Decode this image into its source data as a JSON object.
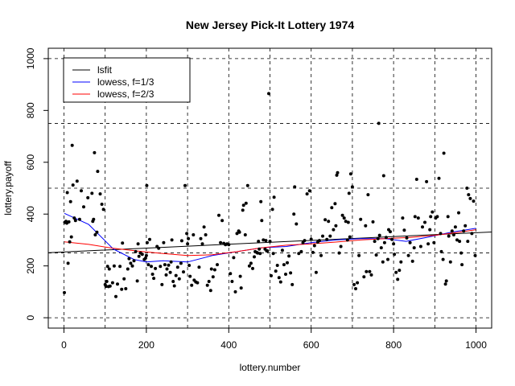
{
  "chart_data": {
    "type": "scatter",
    "title": "New Jersey Pick-It Lottery 1974",
    "xlabel": "lottery.number",
    "ylabel": "lottery.payoff",
    "xlim": [
      -38,
      1038
    ],
    "ylim": [
      -40,
      1040
    ],
    "xticks": [
      0,
      200,
      400,
      600,
      800,
      1000
    ],
    "yticks": [
      0,
      200,
      400,
      600,
      800,
      1000
    ],
    "xgrid": [
      0,
      100,
      200,
      300,
      400,
      500,
      600,
      700,
      800,
      900,
      1000
    ],
    "ygrid": [
      0,
      250,
      500,
      750,
      1000
    ],
    "grid": true,
    "legend_position": "top-left",
    "legend": [
      {
        "label": "lsfit",
        "color": "#000000"
      },
      {
        "label": "lowess, f=1/3",
        "color": "#0000ff"
      },
      {
        "label": "lowess, f=2/3",
        "color": "#ff0000"
      }
    ],
    "points": [
      [
        1,
        97
      ],
      [
        2,
        368
      ],
      [
        5,
        372
      ],
      [
        7,
        365
      ],
      [
        8,
        483
      ],
      [
        10,
        210
      ],
      [
        12,
        370
      ],
      [
        14,
        293
      ],
      [
        16,
        448
      ],
      [
        18,
        312
      ],
      [
        20,
        665
      ],
      [
        22,
        512
      ],
      [
        25,
        385
      ],
      [
        28,
        375
      ],
      [
        32,
        527
      ],
      [
        38,
        380
      ],
      [
        42,
        490
      ],
      [
        48,
        428
      ],
      [
        58,
        463
      ],
      [
        68,
        480
      ],
      [
        70,
        372
      ],
      [
        72,
        380
      ],
      [
        74,
        637
      ],
      [
        76,
        320
      ],
      [
        80,
        330
      ],
      [
        82,
        565
      ],
      [
        88,
        478
      ],
      [
        92,
        438
      ],
      [
        96,
        418
      ],
      [
        100,
        128
      ],
      [
        102,
        121
      ],
      [
        104,
        140
      ],
      [
        106,
        198
      ],
      [
        108,
        120
      ],
      [
        110,
        188
      ],
      [
        112,
        122
      ],
      [
        118,
        135
      ],
      [
        122,
        200
      ],
      [
        126,
        82
      ],
      [
        130,
        130
      ],
      [
        136,
        198
      ],
      [
        140,
        110
      ],
      [
        142,
        288
      ],
      [
        146,
        150
      ],
      [
        150,
        112
      ],
      [
        155,
        188
      ],
      [
        158,
        228
      ],
      [
        162,
        210
      ],
      [
        166,
        200
      ],
      [
        170,
        220
      ],
      [
        174,
        255
      ],
      [
        178,
        142
      ],
      [
        180,
        285
      ],
      [
        182,
        237
      ],
      [
        186,
        250
      ],
      [
        190,
        245
      ],
      [
        195,
        225
      ],
      [
        198,
        230
      ],
      [
        200,
        240
      ],
      [
        201,
        510
      ],
      [
        202,
        290
      ],
      [
        205,
        205
      ],
      [
        208,
        302
      ],
      [
        212,
        198
      ],
      [
        215,
        168
      ],
      [
        218,
        152
      ],
      [
        222,
        190
      ],
      [
        226,
        275
      ],
      [
        230,
        268
      ],
      [
        234,
        198
      ],
      [
        238,
        128
      ],
      [
        242,
        290
      ],
      [
        245,
        205
      ],
      [
        248,
        165
      ],
      [
        250,
        188
      ],
      [
        254,
        203
      ],
      [
        258,
        175
      ],
      [
        260,
        215
      ],
      [
        262,
        300
      ],
      [
        265,
        140
      ],
      [
        268,
        123
      ],
      [
        272,
        163
      ],
      [
        276,
        195
      ],
      [
        280,
        150
      ],
      [
        284,
        210
      ],
      [
        286,
        297
      ],
      [
        290,
        177
      ],
      [
        294,
        510
      ],
      [
        298,
        325
      ],
      [
        300,
        285
      ],
      [
        302,
        305
      ],
      [
        304,
        202
      ],
      [
        306,
        160
      ],
      [
        310,
        125
      ],
      [
        314,
        320
      ],
      [
        316,
        145
      ],
      [
        320,
        138
      ],
      [
        324,
        135
      ],
      [
        328,
        195
      ],
      [
        332,
        305
      ],
      [
        336,
        285
      ],
      [
        340,
        350
      ],
      [
        344,
        320
      ],
      [
        348,
        125
      ],
      [
        352,
        140
      ],
      [
        356,
        105
      ],
      [
        358,
        188
      ],
      [
        362,
        158
      ],
      [
        366,
        185
      ],
      [
        372,
        205
      ],
      [
        376,
        395
      ],
      [
        380,
        290
      ],
      [
        384,
        375
      ],
      [
        388,
        287
      ],
      [
        392,
        282
      ],
      [
        396,
        285
      ],
      [
        400,
        282
      ],
      [
        404,
        170
      ],
      [
        408,
        140
      ],
      [
        412,
        232
      ],
      [
        416,
        100
      ],
      [
        420,
        325
      ],
      [
        424,
        335
      ],
      [
        426,
        330
      ],
      [
        428,
        160
      ],
      [
        430,
        115
      ],
      [
        434,
        415
      ],
      [
        436,
        434
      ],
      [
        440,
        320
      ],
      [
        442,
        442
      ],
      [
        446,
        510
      ],
      [
        450,
        200
      ],
      [
        454,
        210
      ],
      [
        458,
        190
      ],
      [
        462,
        235
      ],
      [
        464,
        255
      ],
      [
        468,
        252
      ],
      [
        470,
        250
      ],
      [
        472,
        295
      ],
      [
        474,
        265
      ],
      [
        476,
        248
      ],
      [
        478,
        448
      ],
      [
        480,
        375
      ],
      [
        484,
        300
      ],
      [
        488,
        265
      ],
      [
        490,
        298
      ],
      [
        492,
        258
      ],
      [
        494,
        258
      ],
      [
        497,
        865
      ],
      [
        500,
        295
      ],
      [
        503,
        162
      ],
      [
        506,
        418
      ],
      [
        508,
        248
      ],
      [
        510,
        465
      ],
      [
        514,
        180
      ],
      [
        518,
        202
      ],
      [
        522,
        155
      ],
      [
        526,
        138
      ],
      [
        530,
        260
      ],
      [
        534,
        205
      ],
      [
        538,
        168
      ],
      [
        542,
        212
      ],
      [
        546,
        238
      ],
      [
        550,
        173
      ],
      [
        554,
        128
      ],
      [
        558,
        400
      ],
      [
        560,
        505
      ],
      [
        564,
        362
      ],
      [
        570,
        248
      ],
      [
        576,
        255
      ],
      [
        580,
        290
      ],
      [
        584,
        298
      ],
      [
        590,
        478
      ],
      [
        596,
        490
      ],
      [
        600,
        303
      ],
      [
        604,
        252
      ],
      [
        608,
        278
      ],
      [
        612,
        175
      ],
      [
        616,
        292
      ],
      [
        620,
        298
      ],
      [
        624,
        240
      ],
      [
        628,
        315
      ],
      [
        634,
        378
      ],
      [
        638,
        302
      ],
      [
        642,
        372
      ],
      [
        646,
        315
      ],
      [
        650,
        425
      ],
      [
        654,
        340
      ],
      [
        658,
        440
      ],
      [
        660,
        355
      ],
      [
        662,
        550
      ],
      [
        664,
        560
      ],
      [
        668,
        250
      ],
      [
        672,
        275
      ],
      [
        676,
        395
      ],
      [
        680,
        385
      ],
      [
        684,
        372
      ],
      [
        688,
        300
      ],
      [
        690,
        368
      ],
      [
        692,
        480
      ],
      [
        694,
        312
      ],
      [
        696,
        555
      ],
      [
        700,
        505
      ],
      [
        704,
        128
      ],
      [
        708,
        112
      ],
      [
        712,
        135
      ],
      [
        716,
        240
      ],
      [
        720,
        380
      ],
      [
        728,
        158
      ],
      [
        732,
        355
      ],
      [
        734,
        178
      ],
      [
        738,
        475
      ],
      [
        742,
        178
      ],
      [
        746,
        165
      ],
      [
        750,
        370
      ],
      [
        754,
        295
      ],
      [
        758,
        242
      ],
      [
        762,
        305
      ],
      [
        764,
        750
      ],
      [
        766,
        318
      ],
      [
        770,
        270
      ],
      [
        774,
        215
      ],
      [
        776,
        548
      ],
      [
        778,
        290
      ],
      [
        782,
        310
      ],
      [
        786,
        225
      ],
      [
        788,
        340
      ],
      [
        792,
        332
      ],
      [
        796,
        302
      ],
      [
        800,
        285
      ],
      [
        802,
        245
      ],
      [
        806,
        175
      ],
      [
        810,
        148
      ],
      [
        814,
        183
      ],
      [
        818,
        215
      ],
      [
        822,
        385
      ],
      [
        826,
        338
      ],
      [
        832,
        308
      ],
      [
        836,
        240
      ],
      [
        840,
        290
      ],
      [
        846,
        218
      ],
      [
        850,
        270
      ],
      [
        852,
        390
      ],
      [
        856,
        534
      ],
      [
        860,
        385
      ],
      [
        866,
        275
      ],
      [
        870,
        350
      ],
      [
        876,
        368
      ],
      [
        880,
        525
      ],
      [
        884,
        285
      ],
      [
        888,
        340
      ],
      [
        890,
        390
      ],
      [
        894,
        408
      ],
      [
        898,
        290
      ],
      [
        902,
        385
      ],
      [
        906,
        390
      ],
      [
        910,
        538
      ],
      [
        914,
        325
      ],
      [
        916,
        255
      ],
      [
        920,
        225
      ],
      [
        922,
        635
      ],
      [
        926,
        130
      ],
      [
        928,
        142
      ],
      [
        932,
        390
      ],
      [
        934,
        315
      ],
      [
        938,
        215
      ],
      [
        942,
        335
      ],
      [
        946,
        320
      ],
      [
        950,
        350
      ],
      [
        954,
        300
      ],
      [
        958,
        405
      ],
      [
        960,
        295
      ],
      [
        964,
        250
      ],
      [
        966,
        205
      ],
      [
        970,
        335
      ],
      [
        974,
        355
      ],
      [
        978,
        500
      ],
      [
        980,
        295
      ],
      [
        982,
        475
      ],
      [
        986,
        460
      ],
      [
        990,
        325
      ],
      [
        994,
        450
      ],
      [
        998,
        240
      ]
    ],
    "series": [
      {
        "name": "lsfit",
        "color": "#000000",
        "x": [
          -38,
          1038
        ],
        "y": [
          251,
          331
        ]
      },
      {
        "name": "lowess, f=1/3",
        "color": "#0000ff",
        "x": [
          1,
          60,
          120,
          170,
          200,
          240,
          300,
          360,
          420,
          480,
          540,
          600,
          660,
          720,
          780,
          830,
          880,
          940,
          1000
        ],
        "y": [
          403,
          360,
          265,
          225,
          215,
          220,
          215,
          240,
          255,
          270,
          275,
          290,
          300,
          305,
          305,
          295,
          310,
          330,
          345
        ]
      },
      {
        "name": "lowess, f=2/3",
        "color": "#ff0000",
        "x": [
          1,
          60,
          120,
          180,
          240,
          300,
          360,
          420,
          480,
          540,
          600,
          660,
          720,
          780,
          840,
          900,
          960,
          1000
        ],
        "y": [
          293,
          283,
          268,
          257,
          248,
          240,
          243,
          255,
          270,
          280,
          285,
          292,
          300,
          305,
          310,
          318,
          330,
          340
        ]
      }
    ]
  }
}
